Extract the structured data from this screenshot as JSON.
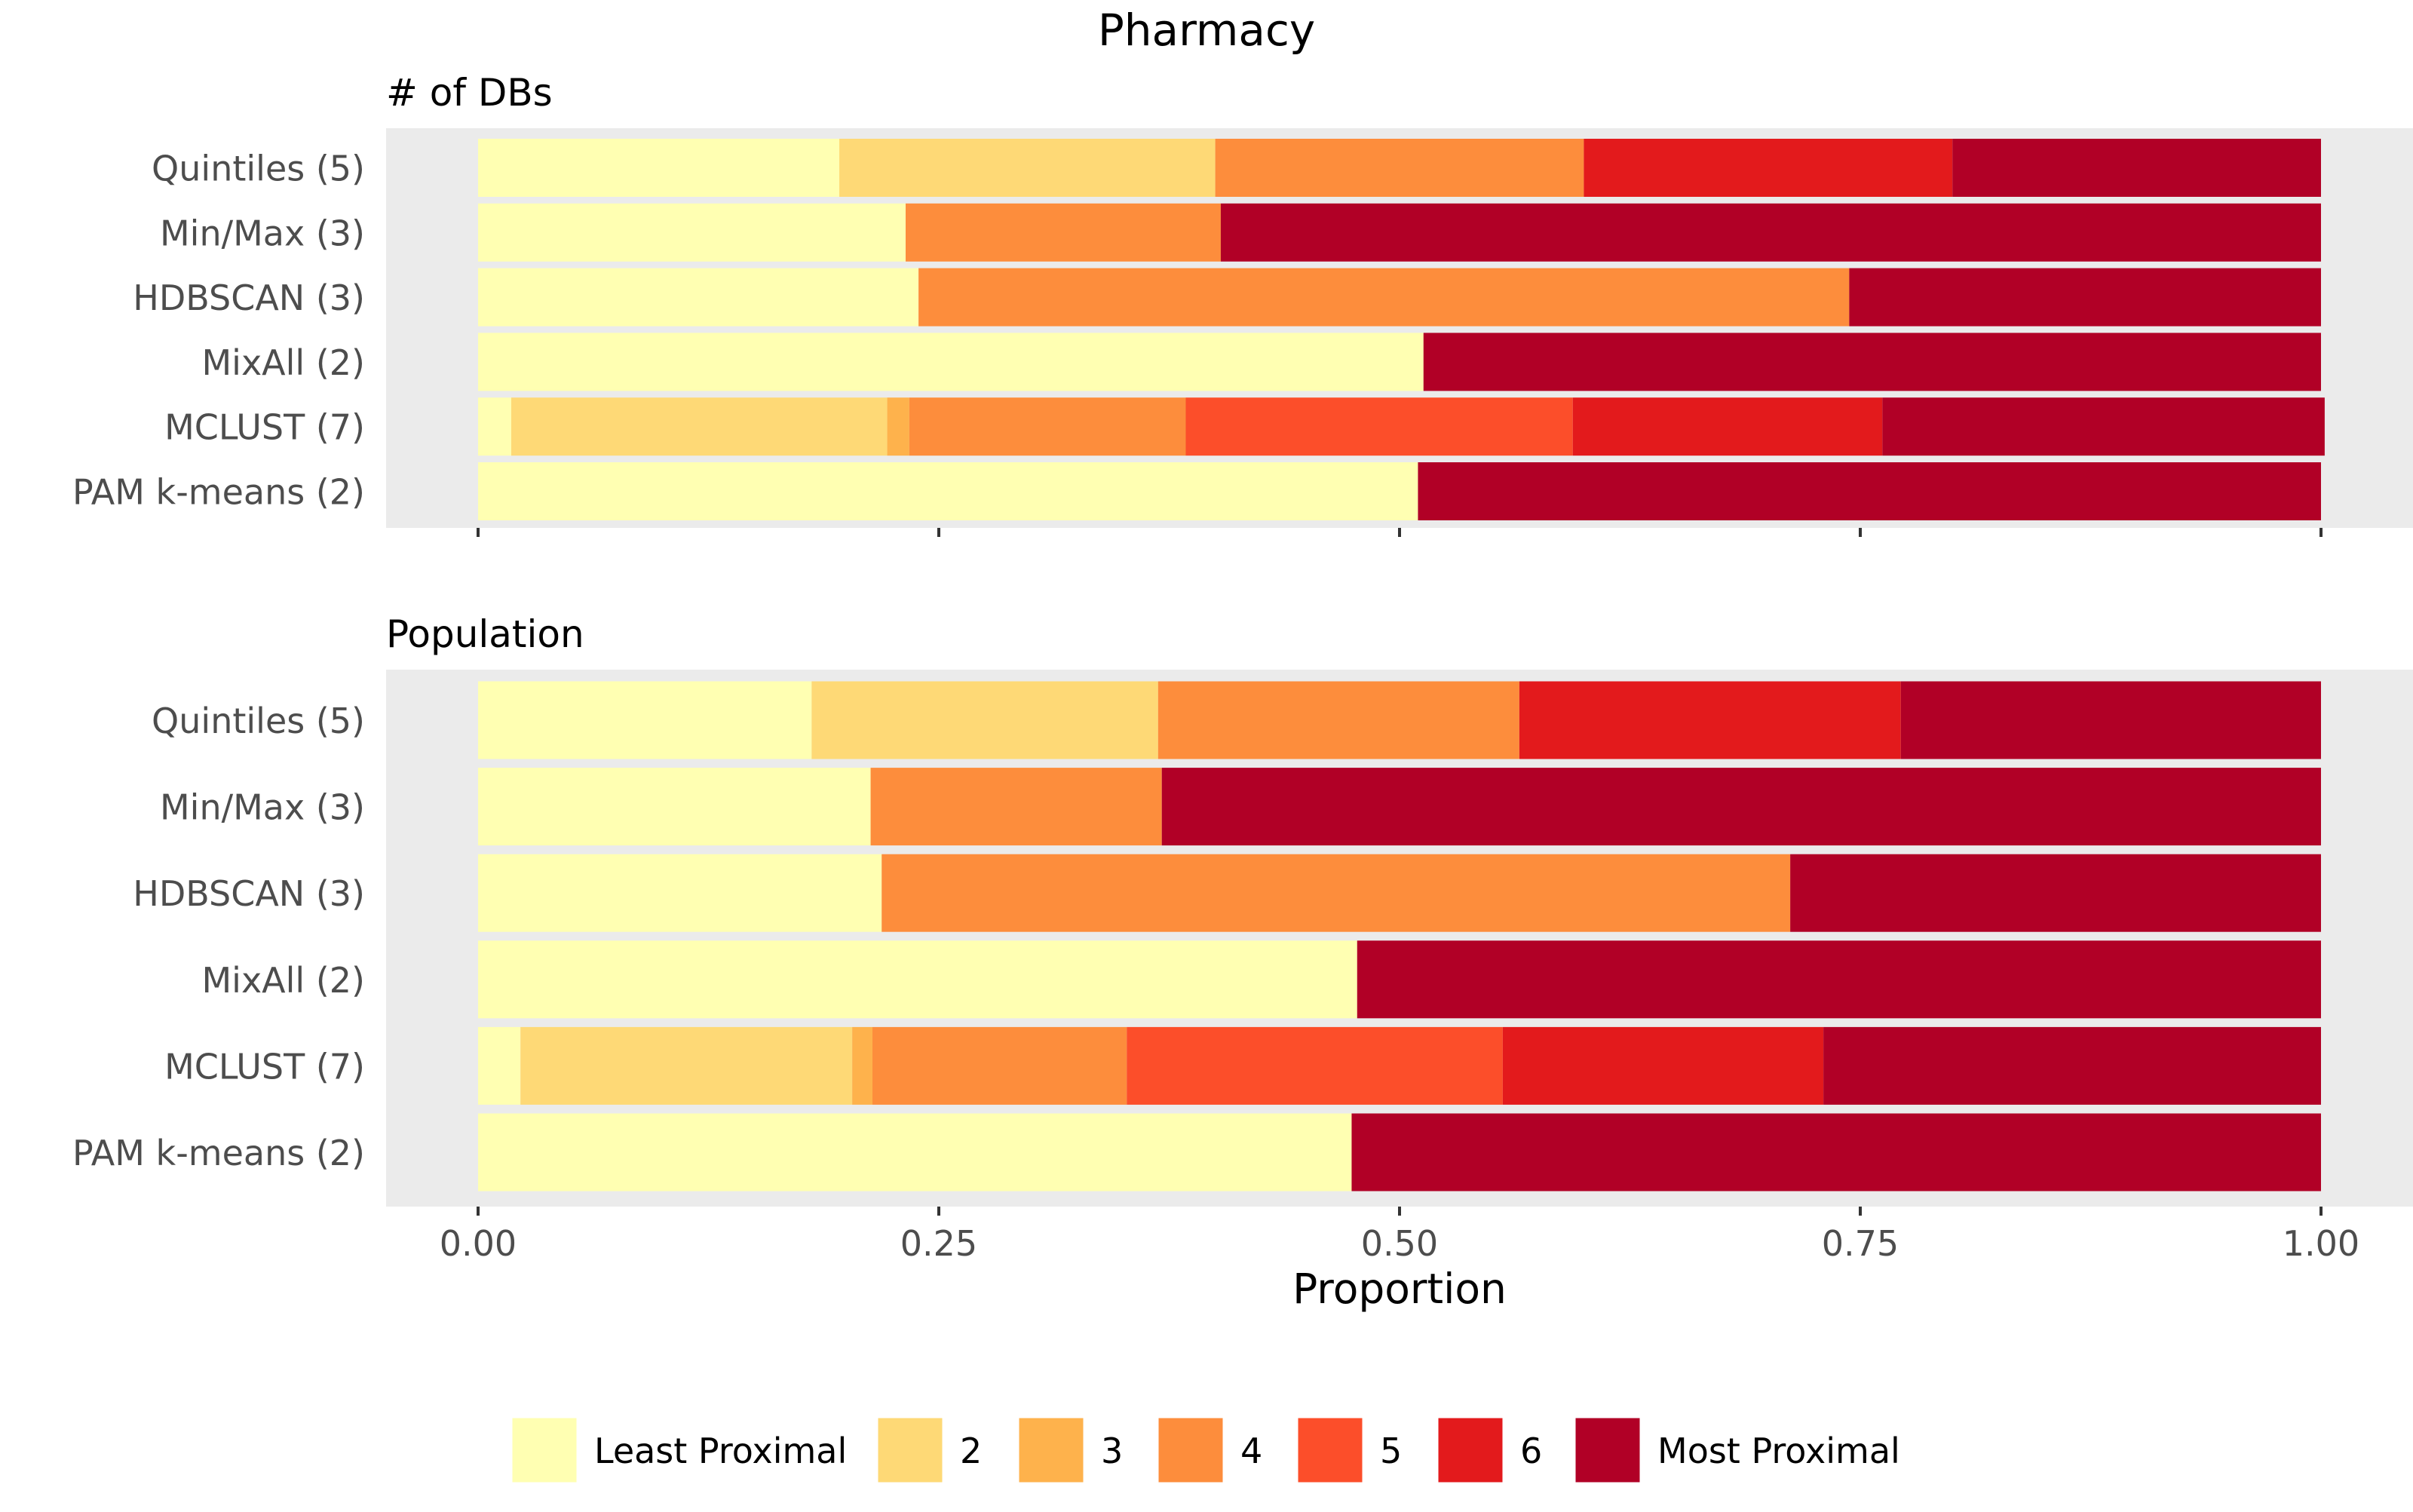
{
  "chart_data": {
    "type": "bar",
    "orientation": "horizontal",
    "stacked": true,
    "title": "Pharmacy",
    "xlabel": "Proportion",
    "xlim": [
      0,
      1
    ],
    "xticks": [
      "0.00",
      "0.25",
      "0.50",
      "0.75",
      "1.00"
    ],
    "xtick_values": [
      0,
      0.25,
      0.5,
      0.75,
      1
    ],
    "grid": false,
    "legend_position": "bottom",
    "levels": [
      "Least Proximal",
      "2",
      "3",
      "4",
      "5",
      "6",
      "Most Proximal"
    ],
    "colors": [
      "#FFFFB2",
      "#FED976",
      "#FEB24C",
      "#FD8D3C",
      "#FC4E2A",
      "#E31A1C",
      "#B10026"
    ],
    "panels": [
      {
        "subtitle": "# of DBs",
        "categories": [
          "Quintiles (5)",
          "Min/Max (3)",
          "HDBSCAN (3)",
          "MixAll (2)",
          "MCLUST (7)",
          "PAM k-means (2)"
        ],
        "series": [
          {
            "name": "Least Proximal",
            "values": [
              0.196,
              0.232,
              0.239,
              0.513,
              0.018,
              0.51
            ]
          },
          {
            "name": "2",
            "values": [
              0.204,
              0,
              0,
              0,
              0.204,
              0
            ]
          },
          {
            "name": "3",
            "values": [
              0,
              0,
              0,
              0,
              0.012,
              0
            ]
          },
          {
            "name": "4",
            "values": [
              0.2,
              0.171,
              0.505,
              0,
              0.15,
              0
            ]
          },
          {
            "name": "5",
            "values": [
              0,
              0,
              0,
              0,
              0.21,
              0
            ]
          },
          {
            "name": "6",
            "values": [
              0.2,
              0,
              0,
              0,
              0.168,
              0
            ]
          },
          {
            "name": "Most Proximal",
            "values": [
              0.2,
              0.597,
              0.256,
              0.487,
              0.24,
              0.49
            ]
          }
        ]
      },
      {
        "subtitle": "Population",
        "categories": [
          "Quintiles (5)",
          "Min/Max (3)",
          "HDBSCAN (3)",
          "MixAll (2)",
          "MCLUST (7)",
          "PAM k-means (2)"
        ],
        "series": [
          {
            "name": "Least Proximal",
            "values": [
              0.181,
              0.213,
              0.219,
              0.477,
              0.023,
              0.474
            ]
          },
          {
            "name": "2",
            "values": [
              0.188,
              0,
              0,
              0,
              0.18,
              0
            ]
          },
          {
            "name": "3",
            "values": [
              0,
              0,
              0,
              0,
              0.011,
              0
            ]
          },
          {
            "name": "4",
            "values": [
              0.196,
              0.158,
              0.493,
              0,
              0.138,
              0
            ]
          },
          {
            "name": "5",
            "values": [
              0,
              0,
              0,
              0,
              0.204,
              0
            ]
          },
          {
            "name": "6",
            "values": [
              0.207,
              0,
              0,
              0,
              0.174,
              0
            ]
          },
          {
            "name": "Most Proximal",
            "values": [
              0.228,
              0.629,
              0.288,
              0.523,
              0.27,
              0.526
            ]
          }
        ]
      }
    ]
  }
}
